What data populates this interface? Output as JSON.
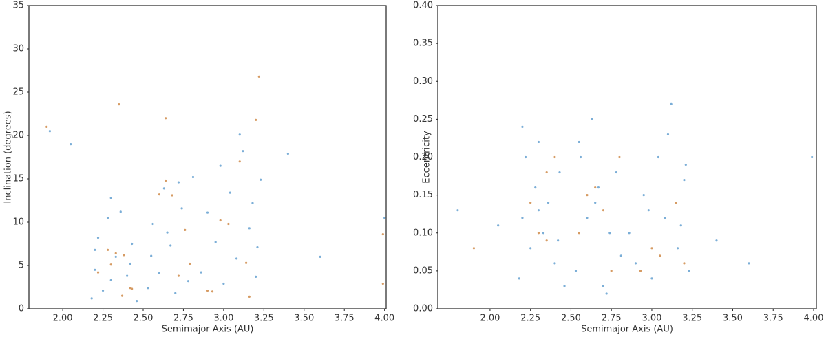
{
  "chart_data": [
    {
      "type": "scatter",
      "x_label": "Semimajor Axis (AU)",
      "y_label": "Inclination (degrees)",
      "xlim": [
        1.79,
        4.01
      ],
      "ylim": [
        0,
        35
      ],
      "xticks": [
        {
          "value": 2,
          "label": "2.00"
        },
        {
          "value": 2.25,
          "label": "2.25"
        },
        {
          "value": 2.5,
          "label": "2.50"
        },
        {
          "value": 2.75,
          "label": "2.75"
        },
        {
          "value": 3,
          "label": "3.00"
        },
        {
          "value": 3.25,
          "label": "3.25"
        },
        {
          "value": 3.5,
          "label": "3.50"
        },
        {
          "value": 3.75,
          "label": "3.75"
        },
        {
          "value": 4,
          "label": "4.00"
        }
      ],
      "yticks": [
        0,
        5,
        10,
        15,
        20,
        25,
        30,
        35
      ],
      "series": [
        {
          "color": "#4f93c9",
          "x": [
            2.18,
            2.2,
            2.22,
            2.25,
            2.28,
            2.3,
            2.33,
            2.36,
            2.4,
            2.43,
            2.46,
            2.2,
            2.3,
            2.42,
            2.53,
            2.56,
            2.6,
            2.63,
            2.67,
            2.7,
            2.74,
            2.78,
            2.81,
            2.55,
            2.65,
            2.72,
            2.86,
            2.9,
            2.95,
            3.0,
            3.04,
            3.08,
            3.12,
            3.16,
            3.2,
            3.23,
            3.1,
            3.18,
            2.98,
            3.21,
            1.92,
            2.05,
            3.4,
            3.6,
            4.0
          ],
          "values": [
            1.2,
            4.5,
            8.2,
            2.1,
            10.5,
            3.3,
            6.0,
            11.2,
            3.8,
            7.5,
            0.9,
            6.8,
            12.8,
            5.2,
            2.4,
            9.8,
            4.1,
            13.9,
            7.3,
            1.8,
            11.6,
            3.2,
            15.2,
            6.1,
            8.8,
            14.6,
            4.2,
            11.1,
            7.7,
            2.9,
            13.4,
            5.8,
            18.2,
            9.3,
            3.7,
            14.9,
            20.1,
            12.2,
            16.5,
            7.1,
            20.5,
            19,
            17.9,
            6,
            10.5
          ]
        },
        {
          "color": "#c8792f",
          "x": [
            2.22,
            2.28,
            2.33,
            2.38,
            2.43,
            2.3,
            2.37,
            2.42,
            2.6,
            2.64,
            2.68,
            2.76,
            2.79,
            2.9,
            2.93,
            2.98,
            3.03,
            3.14,
            3.16,
            3.2,
            3.22,
            2.35,
            1.9,
            2.64,
            3.1,
            3.99,
            3.99,
            2.72
          ],
          "values": [
            4.2,
            6.8,
            6.4,
            6.2,
            2.3,
            5.1,
            1.5,
            2.4,
            13.2,
            14.8,
            13.1,
            9.1,
            5.2,
            2.1,
            2.0,
            10.2,
            9.8,
            5.3,
            1.4,
            21.8,
            26.8,
            23.6,
            21.0,
            22.0,
            17.0,
            8.6,
            2.9,
            3.8
          ]
        }
      ]
    },
    {
      "type": "scatter",
      "x_label": "Semimajor Axis (AU)",
      "y_label": "Eccentricity",
      "xlim": [
        1.677,
        4.017
      ],
      "ylim": [
        0,
        0.4
      ],
      "xticks": [
        {
          "value": 2,
          "label": "2.00"
        },
        {
          "value": 2.25,
          "label": "2.25"
        },
        {
          "value": 2.5,
          "label": "2.50"
        },
        {
          "value": 2.75,
          "label": "2.75"
        },
        {
          "value": 3,
          "label": "3.00"
        },
        {
          "value": 3.25,
          "label": "3.25"
        },
        {
          "value": 3.5,
          "label": "3.50"
        },
        {
          "value": 3.75,
          "label": "3.75"
        },
        {
          "value": 4,
          "label": "4.00"
        }
      ],
      "yticks": [
        {
          "value": 0,
          "label": "0.00"
        },
        {
          "value": 0.05,
          "label": "0.05"
        },
        {
          "value": 0.1,
          "label": "0.10"
        },
        {
          "value": 0.15,
          "label": "0.15"
        },
        {
          "value": 0.2,
          "label": "0.20"
        },
        {
          "value": 0.25,
          "label": "0.25"
        },
        {
          "value": 0.3,
          "label": "0.30"
        },
        {
          "value": 0.35,
          "label": "0.35"
        },
        {
          "value": 0.4,
          "label": "0.40"
        }
      ],
      "series": [
        {
          "color": "#4f93c9",
          "x": [
            2.18,
            2.2,
            2.22,
            2.25,
            2.28,
            2.3,
            2.33,
            2.36,
            2.4,
            2.43,
            2.46,
            2.2,
            2.3,
            2.42,
            2.53,
            2.56,
            2.6,
            2.63,
            2.67,
            2.7,
            2.74,
            2.78,
            2.81,
            2.55,
            2.65,
            2.72,
            2.86,
            2.9,
            2.95,
            3.0,
            3.04,
            3.08,
            3.12,
            3.16,
            3.2,
            3.23,
            3.1,
            3.18,
            2.98,
            3.21,
            1.8,
            2.05,
            3.4,
            3.6,
            3.99
          ],
          "values": [
            0.04,
            0.12,
            0.2,
            0.08,
            0.16,
            0.22,
            0.1,
            0.14,
            0.06,
            0.18,
            0.03,
            0.24,
            0.13,
            0.09,
            0.05,
            0.2,
            0.12,
            0.25,
            0.16,
            0.03,
            0.1,
            0.18,
            0.07,
            0.22,
            0.14,
            0.02,
            0.1,
            0.06,
            0.15,
            0.04,
            0.2,
            0.12,
            0.27,
            0.08,
            0.17,
            0.05,
            0.23,
            0.11,
            0.13,
            0.19,
            0.13,
            0.11,
            0.09,
            0.06,
            0.2
          ]
        },
        {
          "color": "#c8792f",
          "x": [
            2.35,
            2.4,
            2.25,
            2.35,
            2.3,
            2.6,
            2.65,
            2.7,
            2.75,
            2.8,
            2.93,
            3.0,
            3.05,
            3.15,
            1.9,
            3.2,
            2.55
          ],
          "values": [
            0.18,
            0.2,
            0.14,
            0.09,
            0.1,
            0.15,
            0.16,
            0.13,
            0.05,
            0.2,
            0.05,
            0.08,
            0.07,
            0.14,
            0.08,
            0.06,
            0.1
          ]
        }
      ]
    }
  ]
}
